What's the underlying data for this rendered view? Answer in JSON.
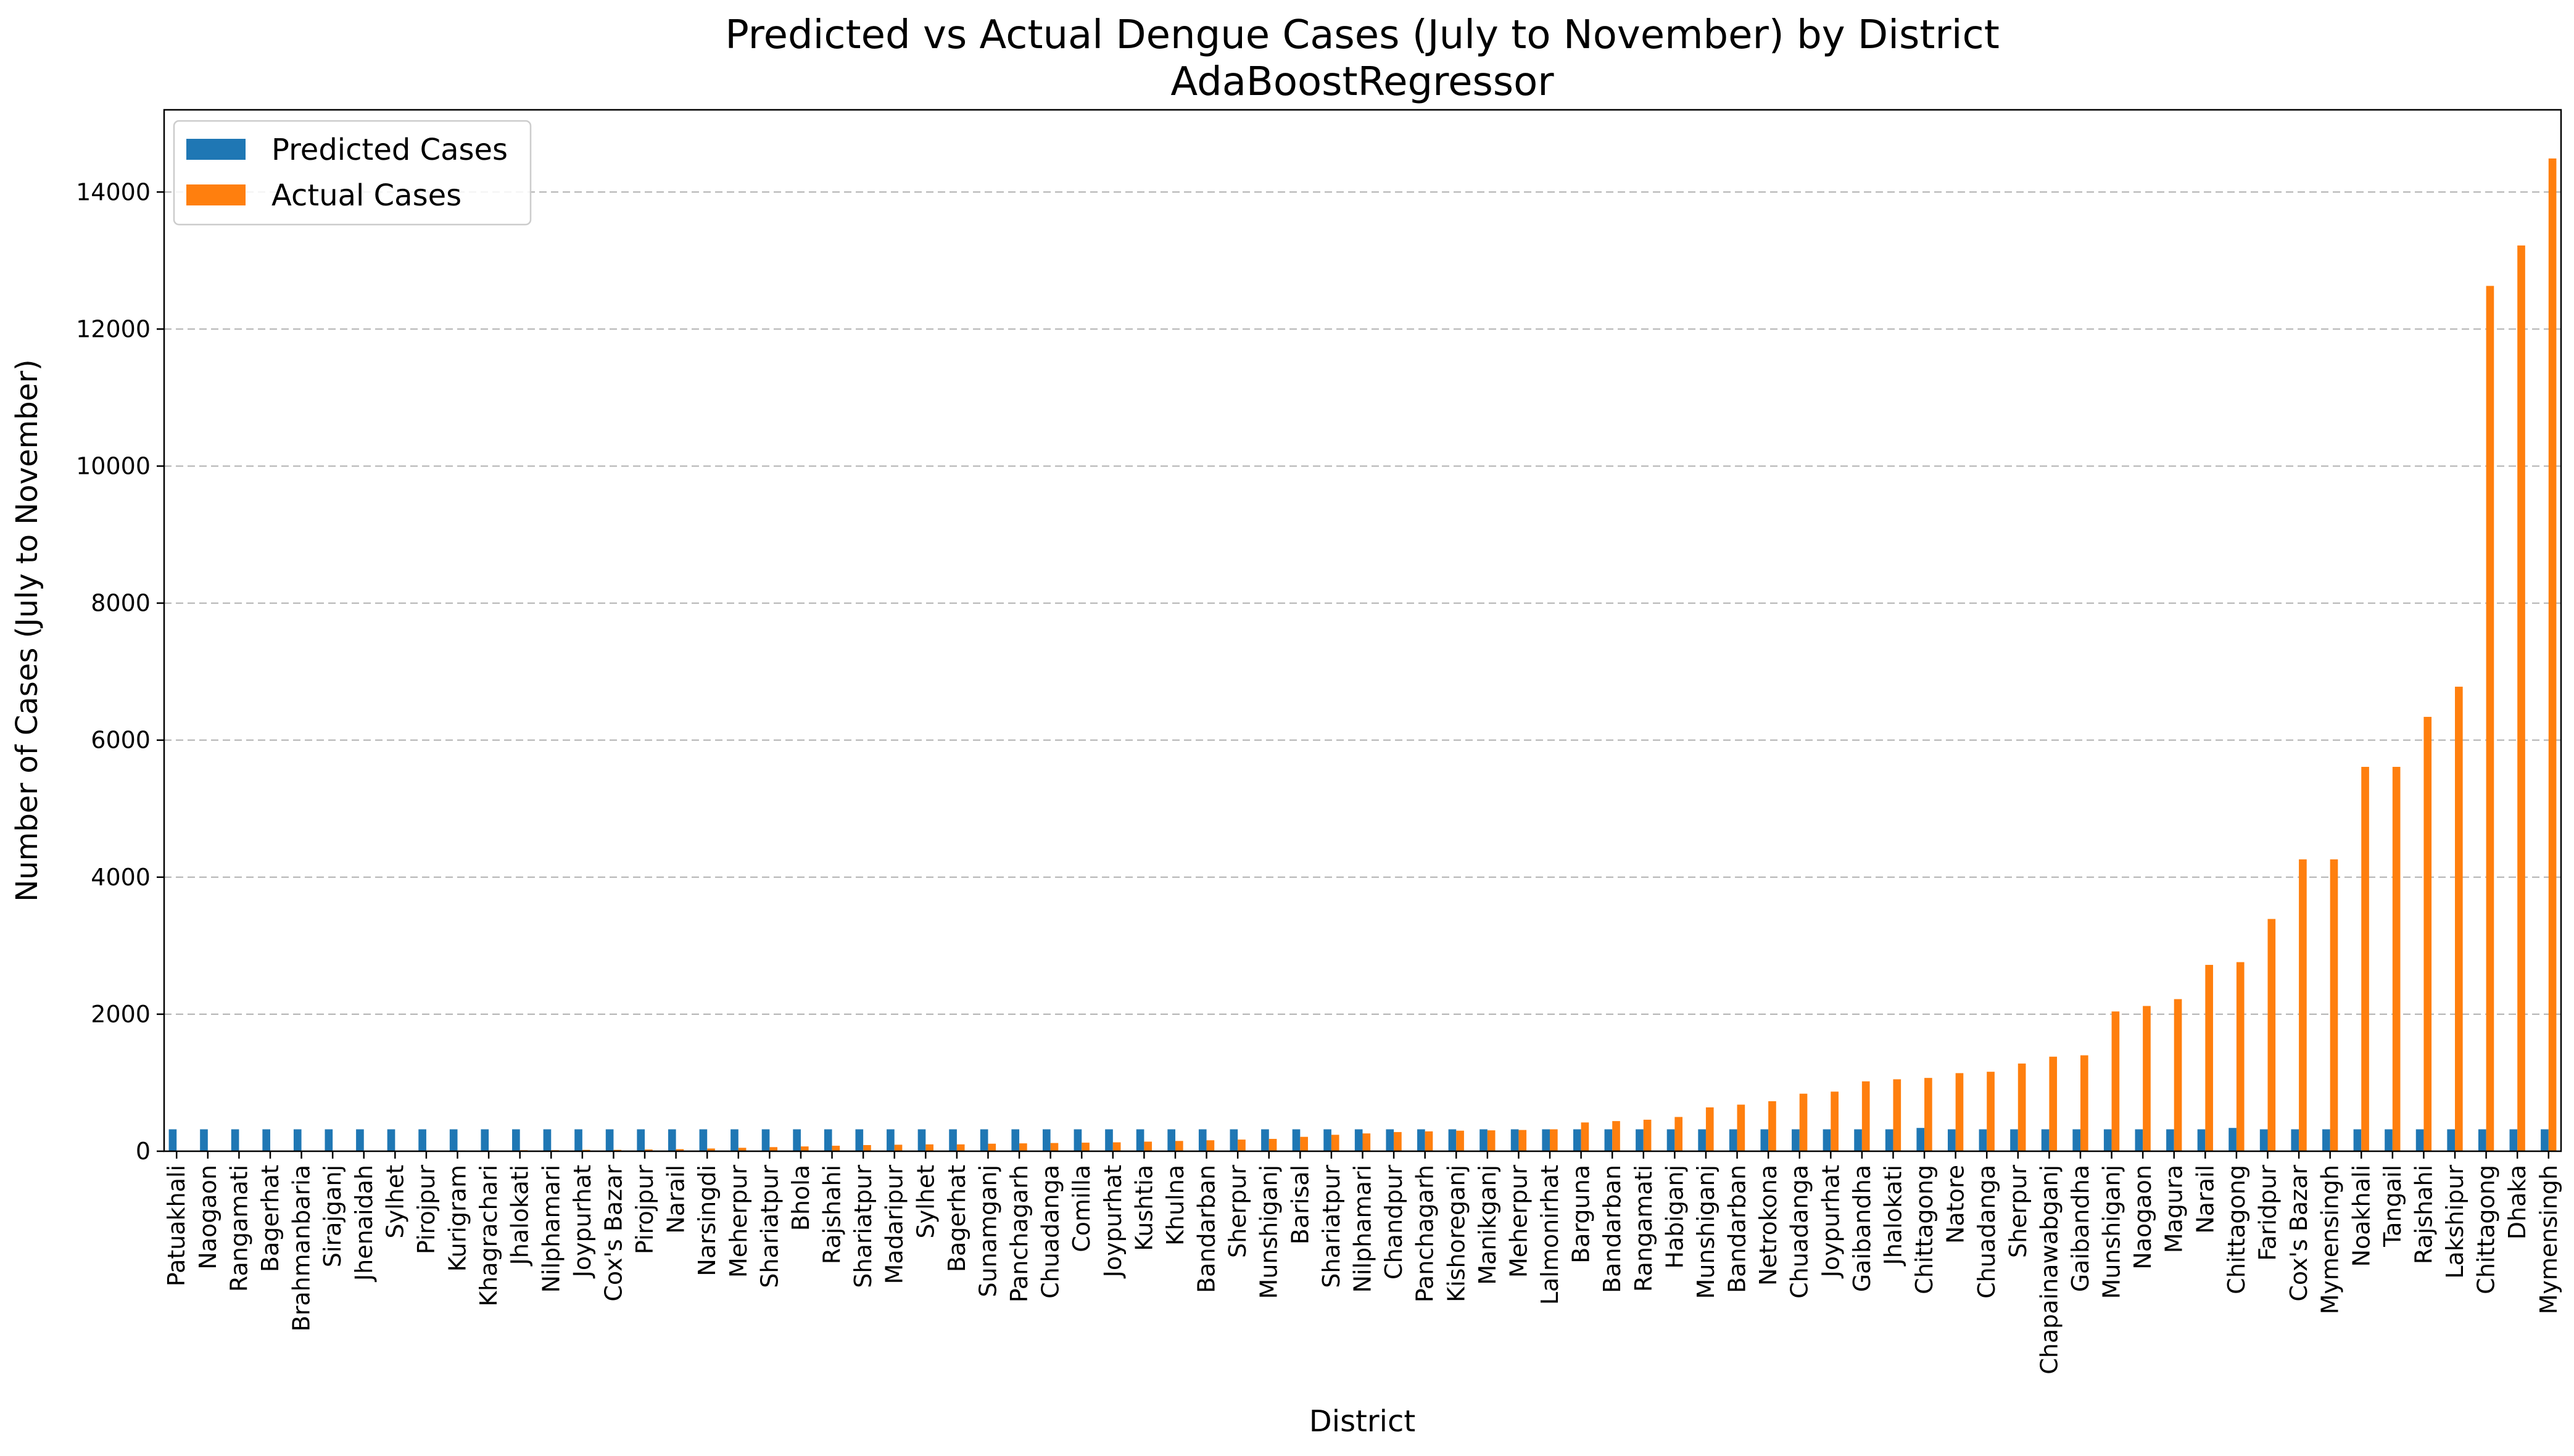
{
  "chart_data": {
    "type": "bar",
    "title": "Predicted vs Actual Dengue Cases (July to November) by District",
    "subtitle": "AdaBoostRegressor",
    "xlabel": "District",
    "ylabel": "Number of Cases (July to November)",
    "ylim": [
      0,
      15200
    ],
    "yticks": [
      0,
      2000,
      4000,
      6000,
      8000,
      10000,
      12000,
      14000
    ],
    "grid": "y-dashed",
    "legend_position": "top-left",
    "categories": [
      "Patuakhali",
      "Naogaon",
      "Rangamati",
      "Bagerhat",
      "Brahmanbaria",
      "Sirajganj",
      "Jhenaidah",
      "Sylhet",
      "Pirojpur",
      "Kurigram",
      "Khagrachari",
      "Jhalokati",
      "Nilphamari",
      "Joypurhat",
      "Cox's Bazar",
      "Pirojpur",
      "Narail",
      "Narsingdi",
      "Meherpur",
      "Shariatpur",
      "Bhola",
      "Rajshahi",
      "Shariatpur",
      "Madaripur",
      "Sylhet",
      "Bagerhat",
      "Sunamganj",
      "Panchagarh",
      "Chuadanga",
      "Comilla",
      "Joypurhat",
      "Kushtia",
      "Khulna",
      "Bandarban",
      "Sherpur",
      "Munshiganj",
      "Barisal",
      "Shariatpur",
      "Nilphamari",
      "Chandpur",
      "Panchagarh",
      "Kishoreganj",
      "Manikganj",
      "Meherpur",
      "Lalmonirhat",
      "Barguna",
      "Bandarban",
      "Rangamati",
      "Habiganj",
      "Munshiganj",
      "Bandarban",
      "Netrokona",
      "Chuadanga",
      "Joypurhat",
      "Gaibandha",
      "Jhalokati",
      "Chittagong",
      "Natore",
      "Chuadanga",
      "Sherpur",
      "Chapainawabganj",
      "Gaibandha",
      "Munshiganj",
      "Naogaon",
      "Magura",
      "Narail",
      "Chittagong",
      "Faridpur",
      "Cox's Bazar",
      "Mymensingh",
      "Noakhali",
      "Tangail",
      "Rajshahi",
      "Lakshipur",
      "Chittagong",
      "Dhaka",
      "Mymensingh"
    ],
    "series": [
      {
        "name": "Predicted Cases",
        "color": "#1f77b4",
        "values": [
          320,
          320,
          320,
          320,
          320,
          320,
          320,
          320,
          320,
          320,
          320,
          320,
          320,
          320,
          320,
          320,
          320,
          320,
          320,
          320,
          320,
          320,
          320,
          320,
          320,
          320,
          320,
          320,
          320,
          320,
          320,
          320,
          320,
          320,
          320,
          320,
          320,
          320,
          320,
          320,
          320,
          320,
          320,
          320,
          320,
          320,
          320,
          320,
          320,
          320,
          320,
          320,
          320,
          320,
          320,
          320,
          340,
          320,
          320,
          320,
          320,
          320,
          320,
          320,
          320,
          320,
          340,
          320,
          320,
          320,
          320,
          320,
          320,
          320,
          320,
          320,
          320
        ]
      },
      {
        "name": "Actual Cases",
        "color": "#ff7f0e",
        "values": [
          0,
          0,
          0,
          0,
          0,
          5,
          5,
          5,
          10,
          10,
          10,
          15,
          15,
          20,
          20,
          25,
          30,
          40,
          50,
          60,
          70,
          80,
          90,
          95,
          100,
          100,
          110,
          115,
          120,
          125,
          130,
          140,
          150,
          160,
          170,
          180,
          210,
          240,
          260,
          280,
          290,
          300,
          305,
          310,
          320,
          420,
          440,
          460,
          500,
          640,
          680,
          730,
          840,
          870,
          1020,
          1050,
          1070,
          1140,
          1160,
          1280,
          1380,
          1400,
          2040,
          2120,
          2220,
          2720,
          2760,
          3390,
          4260,
          4260,
          5610,
          5610,
          6340,
          6780,
          12630,
          13220,
          14490
        ]
      }
    ]
  }
}
